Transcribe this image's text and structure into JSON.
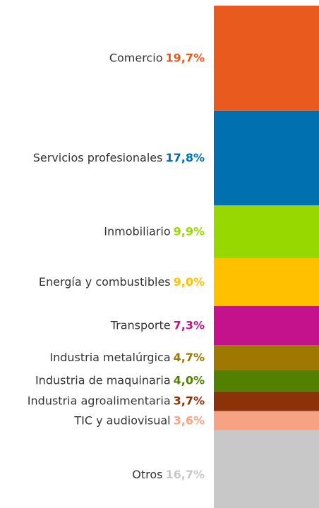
{
  "chart_data": {
    "type": "stacked-column",
    "categories": [
      "Comercio",
      "Servicios profesionales",
      "Inmobiliario",
      "Energía y combustibles",
      "Transporte",
      "Industria metalúrgica",
      "Industria de maquinaria",
      "Industria agroalimentaria",
      "TIC y audiovisual",
      "Otros"
    ],
    "values": [
      19.7,
      17.8,
      9.9,
      9.0,
      7.3,
      4.7,
      4.0,
      3.7,
      3.6,
      16.7
    ],
    "value_labels": [
      "19,7%",
      "17,8%",
      "9,9%",
      "9,0%",
      "7,3%",
      "4,7%",
      "4,0%",
      "3,7%",
      "3,6%",
      "16,7%"
    ],
    "colors": [
      "#e95a1e",
      "#0070b0",
      "#96d800",
      "#ffc000",
      "#c4128c",
      "#9e7800",
      "#538000",
      "#8b3209",
      "#f7a283",
      "#c8c8c8"
    ]
  }
}
